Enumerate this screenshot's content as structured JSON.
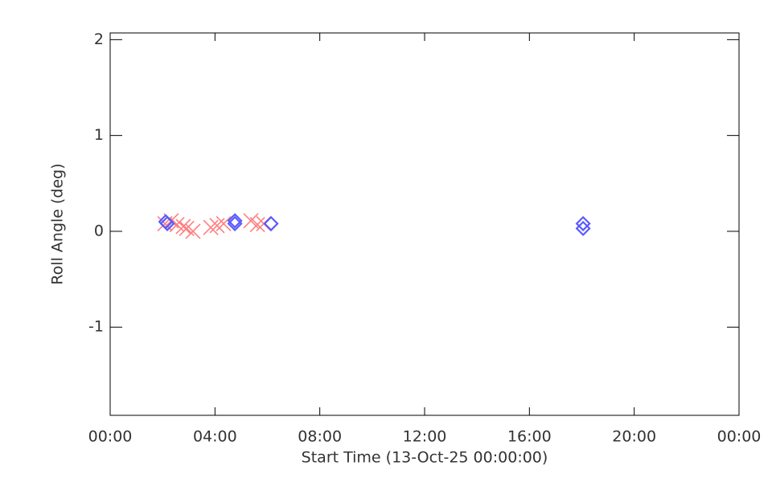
{
  "chart_data": {
    "type": "scatter",
    "xlabel": "Start Time (13-Oct-25 00:00:00)",
    "ylabel": "Roll Angle (deg)",
    "xlim": [
      0,
      24
    ],
    "xticks": [
      {
        "value": 0,
        "label": "00:00"
      },
      {
        "value": 4,
        "label": "04:00"
      },
      {
        "value": 8,
        "label": "08:00"
      },
      {
        "value": 12,
        "label": "12:00"
      },
      {
        "value": 16,
        "label": "16:00"
      },
      {
        "value": 20,
        "label": "20:00"
      },
      {
        "value": 24,
        "label": "00:00"
      }
    ],
    "ylim": [
      -1.92,
      2.07
    ],
    "yticks": [
      -1,
      0,
      1,
      2
    ],
    "series": [
      {
        "color": "#ff7f7f",
        "marker": "x",
        "x": [
          2.09,
          2.33,
          2.55,
          2.79,
          2.92,
          3.16,
          3.84,
          4.08,
          4.33,
          5.37,
          5.62,
          5.86
        ],
        "values": [
          0.08,
          0.11,
          0.07,
          0.05,
          0.03,
          0.0,
          0.04,
          0.06,
          0.08,
          0.11,
          0.07,
          0.08
        ]
      },
      {
        "color": "#5a5aff",
        "marker": "diamond",
        "x": [
          2.12,
          2.18,
          4.76,
          4.76,
          6.14,
          18.05,
          18.05
        ],
        "values": [
          0.1,
          0.08,
          0.11,
          0.08,
          0.08,
          0.08,
          0.03
        ]
      }
    ]
  }
}
